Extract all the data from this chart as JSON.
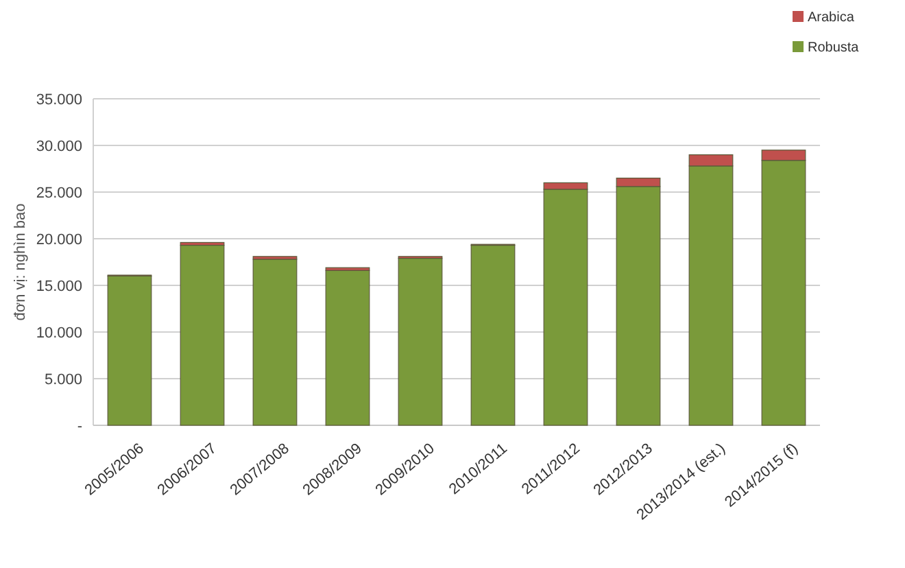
{
  "chart_data": {
    "type": "bar",
    "stacked": true,
    "ylabel": "đơn vị: nghìn bao",
    "categories": [
      "2005/2006",
      "2006/2007",
      "2007/2008",
      "2008/2009",
      "2009/2010",
      "2010/2011",
      "2011/2012",
      "2012/2013",
      "2013/2014 (est.)",
      "2014/2015 (f)"
    ],
    "series": [
      {
        "name": "Robusta",
        "color": "#7a9a3a",
        "values": [
          16000,
          19300,
          17800,
          16600,
          17900,
          19300,
          25300,
          25600,
          27800,
          28400
        ]
      },
      {
        "name": "Arabica",
        "color": "#c0504d",
        "values": [
          100,
          300,
          300,
          300,
          200,
          100,
          700,
          900,
          1200,
          1100
        ]
      }
    ],
    "ylim": [
      0,
      35000
    ],
    "yticks": [
      {
        "value": 0,
        "label": "-"
      },
      {
        "value": 5000,
        "label": "5.000"
      },
      {
        "value": 10000,
        "label": "10.000"
      },
      {
        "value": 15000,
        "label": "15.000"
      },
      {
        "value": 20000,
        "label": "20.000"
      },
      {
        "value": 25000,
        "label": "25.000"
      },
      {
        "value": 30000,
        "label": "30.000"
      },
      {
        "value": 35000,
        "label": "35.000"
      }
    ],
    "grid": "y",
    "legend": "top right"
  }
}
